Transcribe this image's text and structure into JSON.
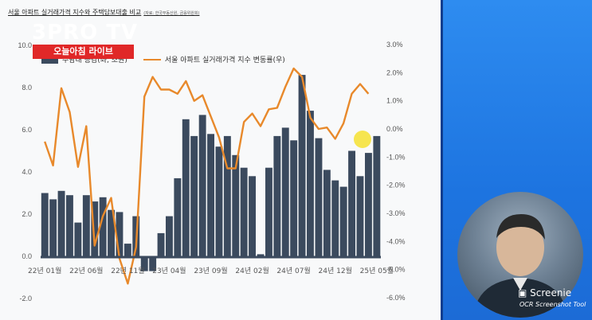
{
  "chart": {
    "title": "서울 아파트 실거래가격 지수와 주택담보대출 비교",
    "source": "(자료: 한국부동산원, 금융위원회)"
  },
  "chart_data": {
    "type": "bar+line",
    "title": "서울 아파트 실거래가격 지수와 주택담보대출 비교",
    "left_axis": {
      "min": -2.0,
      "max": 10.0,
      "ticks": [
        "-2.0",
        "0.0",
        "2.0",
        "4.0",
        "6.0",
        "8.0",
        "10.0"
      ]
    },
    "right_axis": {
      "min": -6.0,
      "max": 3.0,
      "ticks": [
        "-6.0%",
        "-5.0%",
        "-4.0%",
        "-3.0%",
        "-2.0%",
        "-1.0%",
        "0.0%",
        "1.0%",
        "2.0%",
        "3.0%"
      ]
    },
    "x_tick_labels": [
      "22년 01월",
      "22년 06월",
      "22년 11월",
      "23년 04월",
      "23년 09월",
      "24년 02월",
      "24년 07월",
      "24년 12월",
      "25년 05월"
    ],
    "series": [
      {
        "name": "주담대 증감(좌, 조원)",
        "type": "bar",
        "axis": "left",
        "values": [
          3.0,
          2.7,
          3.1,
          2.9,
          1.6,
          2.9,
          2.6,
          2.8,
          2.2,
          2.1,
          0.6,
          1.9,
          -0.7,
          -0.7,
          1.1,
          1.9,
          3.7,
          6.5,
          5.7,
          6.7,
          5.8,
          5.2,
          5.7,
          4.8,
          4.2,
          3.8,
          0.1,
          4.2,
          5.7,
          6.1,
          5.5,
          8.6,
          6.9,
          5.6,
          4.1,
          3.6,
          3.3,
          5.0,
          3.8,
          4.9,
          5.7
        ]
      },
      {
        "name": "서울 아파트 실거래가격 지수 변동률(우)",
        "type": "line",
        "axis": "right",
        "values": [
          -0.45,
          -1.3,
          1.45,
          0.6,
          -1.35,
          0.1,
          -4.15,
          -3.1,
          -2.45,
          -4.6,
          -5.5,
          -4.2,
          1.15,
          1.85,
          1.4,
          1.4,
          1.25,
          1.7,
          1.0,
          1.2,
          0.45,
          -0.3,
          -1.4,
          -1.4,
          0.25,
          0.55,
          0.1,
          0.7,
          0.75,
          1.5,
          2.15,
          1.85,
          0.4,
          0.0,
          0.05,
          -0.35,
          0.2,
          1.25,
          1.6,
          1.25
        ]
      }
    ],
    "legend_position": "top-left",
    "grid": false
  },
  "side": {
    "logo": "3PRO TV",
    "live_label": "오늘아침 라이브",
    "watermark": "Screenie",
    "watermark_sub": "OCR Screenshot Tool"
  }
}
